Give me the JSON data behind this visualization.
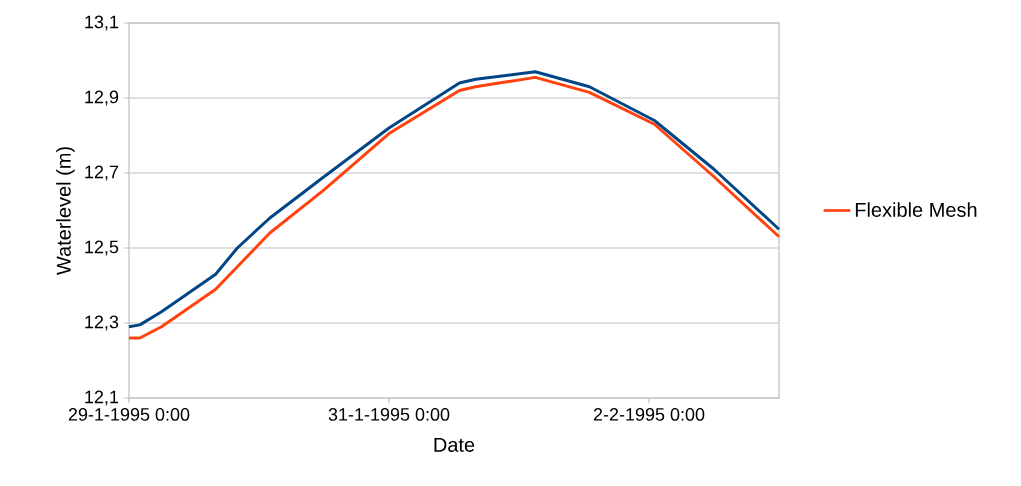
{
  "chart_data": {
    "type": "line",
    "xlabel": "Date",
    "ylabel": "Waterlevel (m)",
    "x": [
      "1995-01-29T00:00",
      "1995-01-29T02:00",
      "1995-01-29T06:00",
      "1995-01-29T10:00",
      "1995-01-29T16:00",
      "1995-01-29T20:00",
      "1995-01-30T02:00",
      "1995-01-30T12:00",
      "1995-01-31T00:00",
      "1995-01-31T13:00",
      "1995-01-31T16:00",
      "1995-02-01T03:00",
      "1995-02-01T13:00",
      "1995-02-02T01:00",
      "1995-02-02T12:00",
      "1995-02-03T00:00"
    ],
    "series": [
      {
        "color": "#004586",
        "values": [
          12.29,
          12.295,
          12.33,
          12.37,
          12.43,
          12.5,
          12.58,
          12.69,
          12.82,
          12.94,
          12.95,
          12.97,
          12.93,
          12.84,
          12.71,
          12.55
        ]
      },
      {
        "name": "Flexible Mesh",
        "color": "#ff420e",
        "values": [
          12.26,
          12.26,
          12.29,
          12.33,
          12.39,
          12.45,
          12.54,
          12.655,
          12.805,
          12.92,
          12.93,
          12.955,
          12.915,
          12.83,
          12.69,
          12.53
        ]
      }
    ],
    "xlim": [
      "1995-01-29T00:00",
      "1995-02-03T00:00"
    ],
    "xticks": [
      {
        "value": "1995-01-29T00:00",
        "label": "29-1-1995 0:00"
      },
      {
        "value": "1995-01-31T00:00",
        "label": "31-1-1995 0:00"
      },
      {
        "value": "1995-02-02T00:00",
        "label": "2-2-1995 0:00"
      }
    ],
    "ylim": [
      12.1,
      13.1
    ],
    "yticks": [
      {
        "value": 12.1,
        "label": "12,1"
      },
      {
        "value": 12.3,
        "label": "12,3"
      },
      {
        "value": 12.5,
        "label": "12,5"
      },
      {
        "value": 12.7,
        "label": "12,7"
      },
      {
        "value": 12.9,
        "label": "12,9"
      },
      {
        "value": 13.1,
        "label": "13,1"
      }
    ],
    "grid": "y",
    "legend": "right",
    "marker": "none",
    "line_style": "solid"
  }
}
